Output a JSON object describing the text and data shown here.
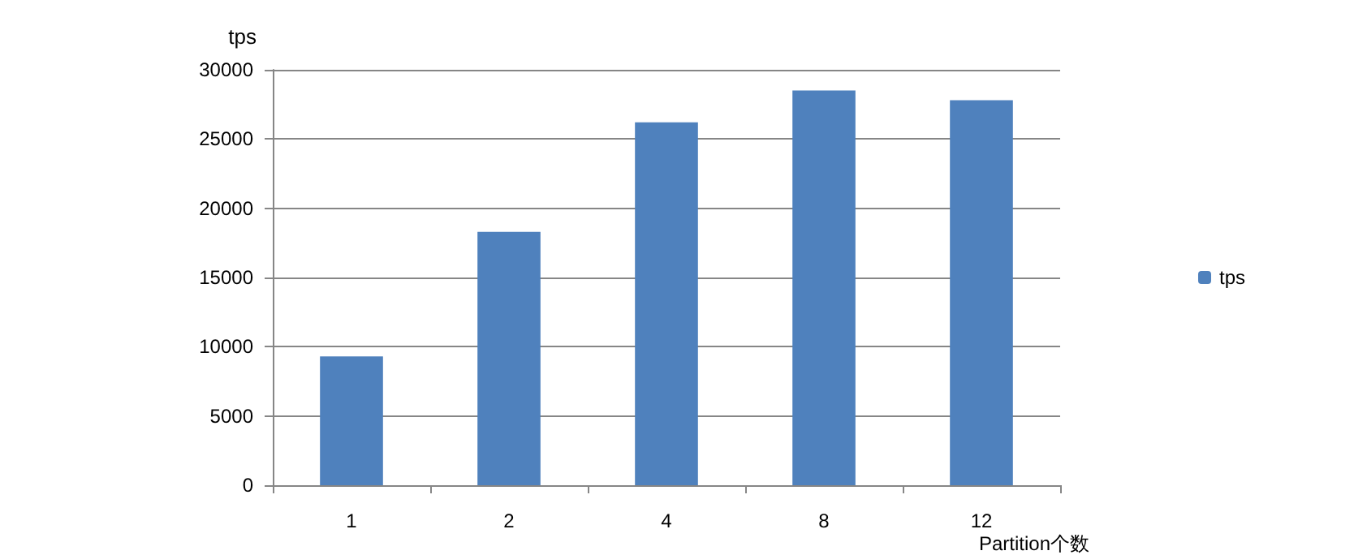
{
  "chart_data": {
    "type": "bar",
    "ylabel": "tps",
    "xlabel": "Partition个数",
    "categories": [
      "1",
      "2",
      "4",
      "8",
      "12"
    ],
    "series": [
      {
        "name": "tps",
        "color": "#4f81bd",
        "values": [
          9300,
          18300,
          26200,
          28500,
          27800
        ]
      }
    ],
    "ylim": [
      0,
      30000
    ],
    "yticks": [
      0,
      5000,
      10000,
      15000,
      20000,
      25000,
      30000
    ],
    "grid": "y",
    "legend": "right"
  }
}
